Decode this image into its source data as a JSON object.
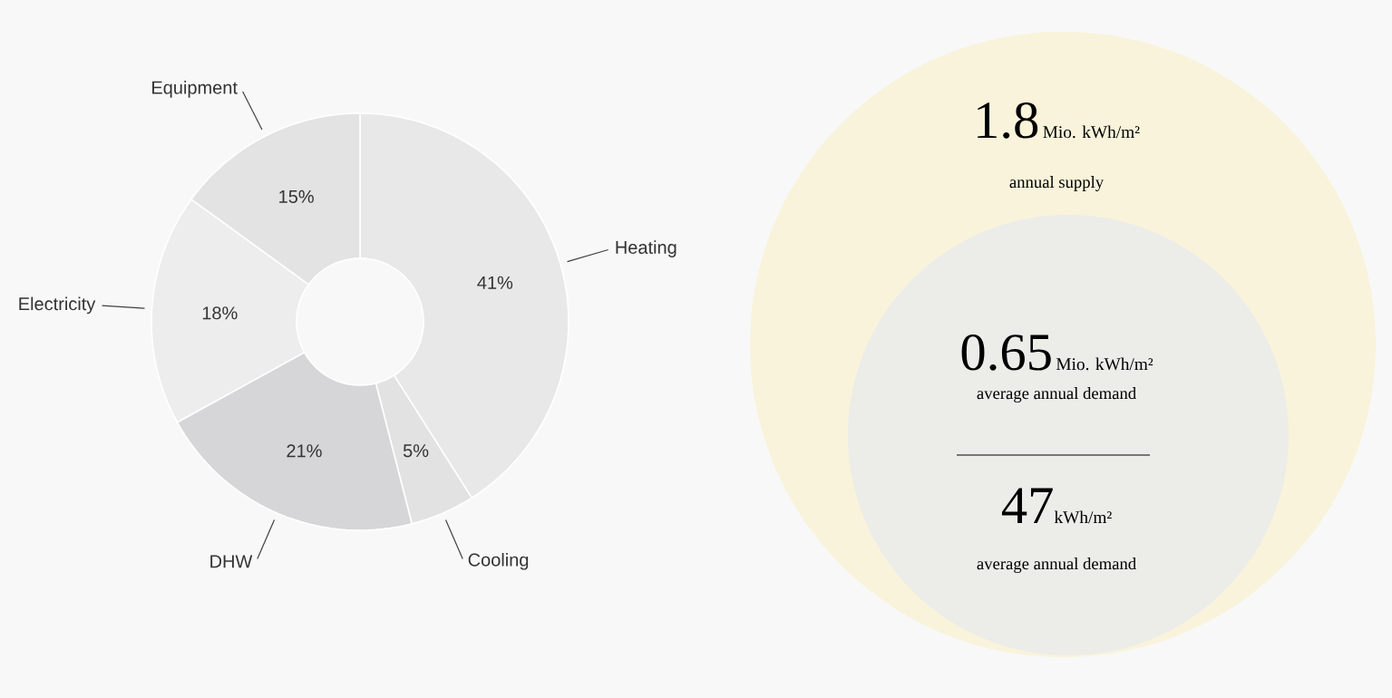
{
  "chart_data": [
    {
      "type": "donut",
      "categories": [
        "Heating",
        "Cooling",
        "DHW",
        "Electricity",
        "Equipment"
      ],
      "values": [
        41,
        5,
        21,
        18,
        15
      ],
      "colors": [
        "#e8e8e8",
        "#e2e2e2",
        "#d6d6d9",
        "#ededed",
        "#e3e3e3"
      ],
      "value_labels": [
        "41%",
        "5%",
        "21%",
        "18%",
        "15%"
      ]
    },
    {
      "type": "other",
      "colors": [
        "#f8f3da",
        "#ecece9"
      ],
      "annotations": [
        "1.8",
        "Mio. kWh/m²",
        "annual supply",
        "0.65",
        "Mio. kWh/m²",
        "average annual demand",
        "47",
        "kWh/m²",
        "average annual demand"
      ]
    }
  ]
}
